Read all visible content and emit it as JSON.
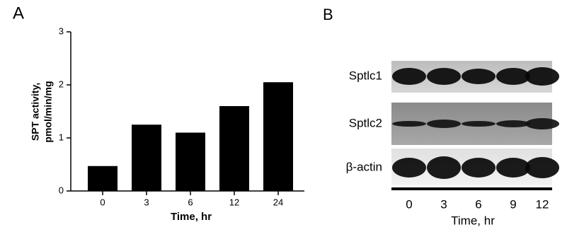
{
  "chart_data": {
    "type": "bar",
    "panel_label": "A",
    "categories": [
      "0",
      "3",
      "6",
      "12",
      "24"
    ],
    "values": [
      0.47,
      1.25,
      1.1,
      1.6,
      2.05
    ],
    "color": "#000000",
    "xlabel": "Time, hr",
    "ylabel": [
      "SPT activity,",
      "pmol/min/mg"
    ],
    "ylim": [
      0,
      3
    ],
    "yticks": [
      0,
      1,
      2,
      3
    ],
    "grid": false
  },
  "blot": {
    "panel_label": "B",
    "rows": [
      "Sptlc1",
      "Sptlc2",
      "β-actin"
    ],
    "lanes": [
      "0",
      "3",
      "6",
      "9",
      "12"
    ],
    "xlabel": "Time, hr"
  }
}
